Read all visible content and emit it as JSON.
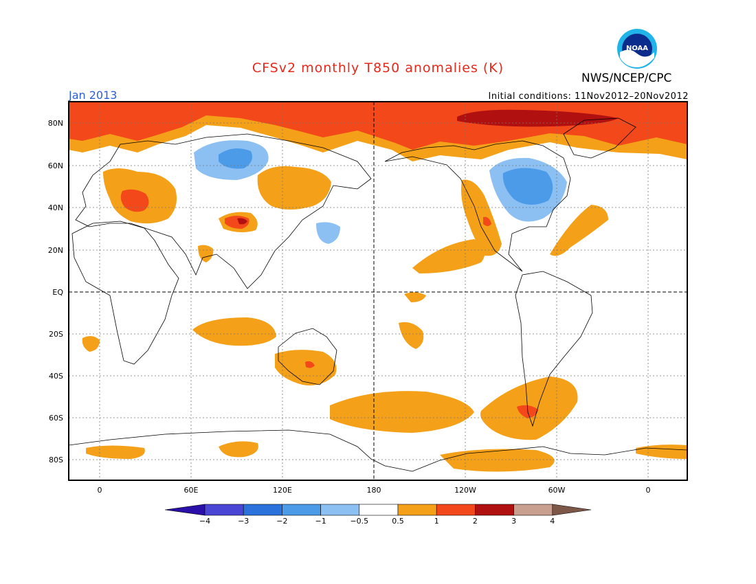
{
  "title": "CFSv2 monthly T850 anomalies (K)",
  "agency": "NWS/NCEP/CPC",
  "logo_text": "NOAA",
  "month_label": "Jan 2013",
  "initial_conditions": "Initial conditions: 11Nov2012–20Nov2012",
  "lat_labels": [
    "80N",
    "60N",
    "40N",
    "20N",
    "EQ",
    "20S",
    "40S",
    "60S",
    "80S"
  ],
  "lon_labels": [
    "0",
    "60E",
    "120E",
    "180",
    "120W",
    "60W",
    "0"
  ],
  "colorbar": {
    "labels": [
      "−4",
      "−3",
      "−2",
      "−1",
      "−0.5",
      "0.5",
      "1",
      "2",
      "3",
      "4"
    ],
    "colors": [
      "#2a0fa8",
      "#4b45d6",
      "#2c72dc",
      "#4b9be8",
      "#8cc0f2",
      "#ffffff",
      "#f4a018",
      "#f2481a",
      "#b01010",
      "#c9a090",
      "#7d5848"
    ]
  }
}
